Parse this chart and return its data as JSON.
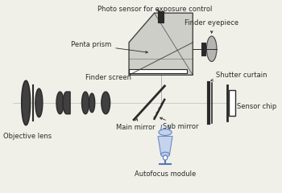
{
  "bg_color": "#f0f0e8",
  "dark": "#2a2a2a",
  "lgray": "#cccccc",
  "prism_fill": "#c8c8c4",
  "blue": "#5577bb",
  "lens_fill": "#404040",
  "oy": 128,
  "labels": {
    "photo_sensor": "Photo sensor for exposure control",
    "finder_eyepiece": "Finder eyepiece",
    "penta_prism": "Penta prism",
    "finder_screen": "Finder screen",
    "shutter_curtain": "Shutter curtain",
    "sensor_chip": "Sensor chip",
    "objective_lens": "Objective lens",
    "main_mirror": "Main mirror",
    "sub_mirror": "Sub mirror",
    "autofocus": "Autofocus module"
  }
}
